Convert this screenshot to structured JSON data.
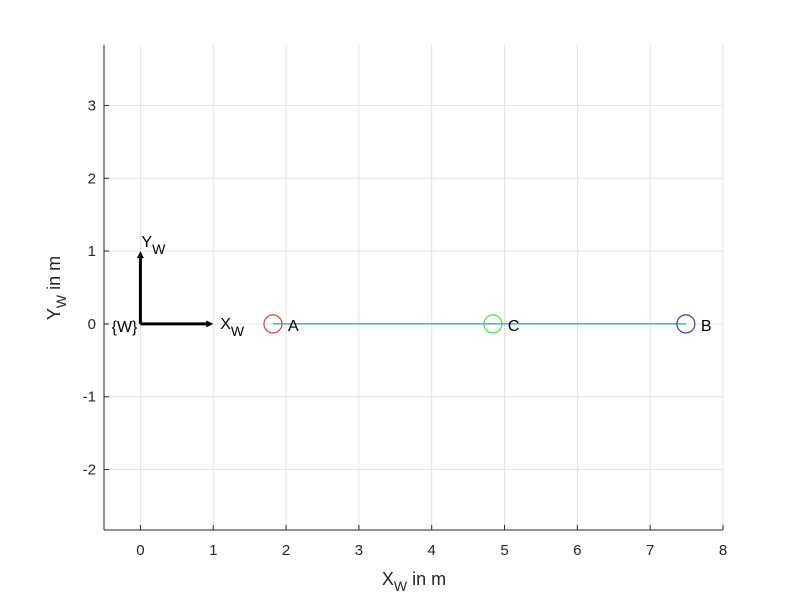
{
  "chart_data": {
    "type": "line",
    "xlabel": {
      "main": "X",
      "sub": "W",
      "suffix": " in m"
    },
    "ylabel": {
      "main": "Y",
      "sub": "W",
      "suffix": " in m"
    },
    "xlim": [
      -0.5,
      8
    ],
    "ylim": [
      -2.83,
      3.83
    ],
    "xticks": [
      0,
      1,
      2,
      3,
      4,
      5,
      6,
      7,
      8
    ],
    "yticks": [
      -2,
      -1,
      0,
      1,
      2,
      3
    ],
    "grid": true,
    "axis_equal": true,
    "frame": {
      "label": "{W}",
      "x_axis": {
        "main": "X",
        "sub": "W"
      },
      "y_axis": {
        "main": "Y",
        "sub": "W"
      },
      "origin": [
        0,
        0
      ],
      "length": 1
    },
    "series": [
      {
        "type": "line",
        "x": [
          1.82,
          7.49
        ],
        "y": [
          0,
          0
        ],
        "color": "#2e9eb0"
      }
    ],
    "points": [
      {
        "label": "A",
        "x": 1.82,
        "y": 0,
        "color": "#d9413f"
      },
      {
        "label": "C",
        "x": 4.84,
        "y": 0,
        "color": "#4cd94c"
      },
      {
        "label": "B",
        "x": 7.49,
        "y": 0,
        "color": "#3a3ab0"
      }
    ]
  }
}
